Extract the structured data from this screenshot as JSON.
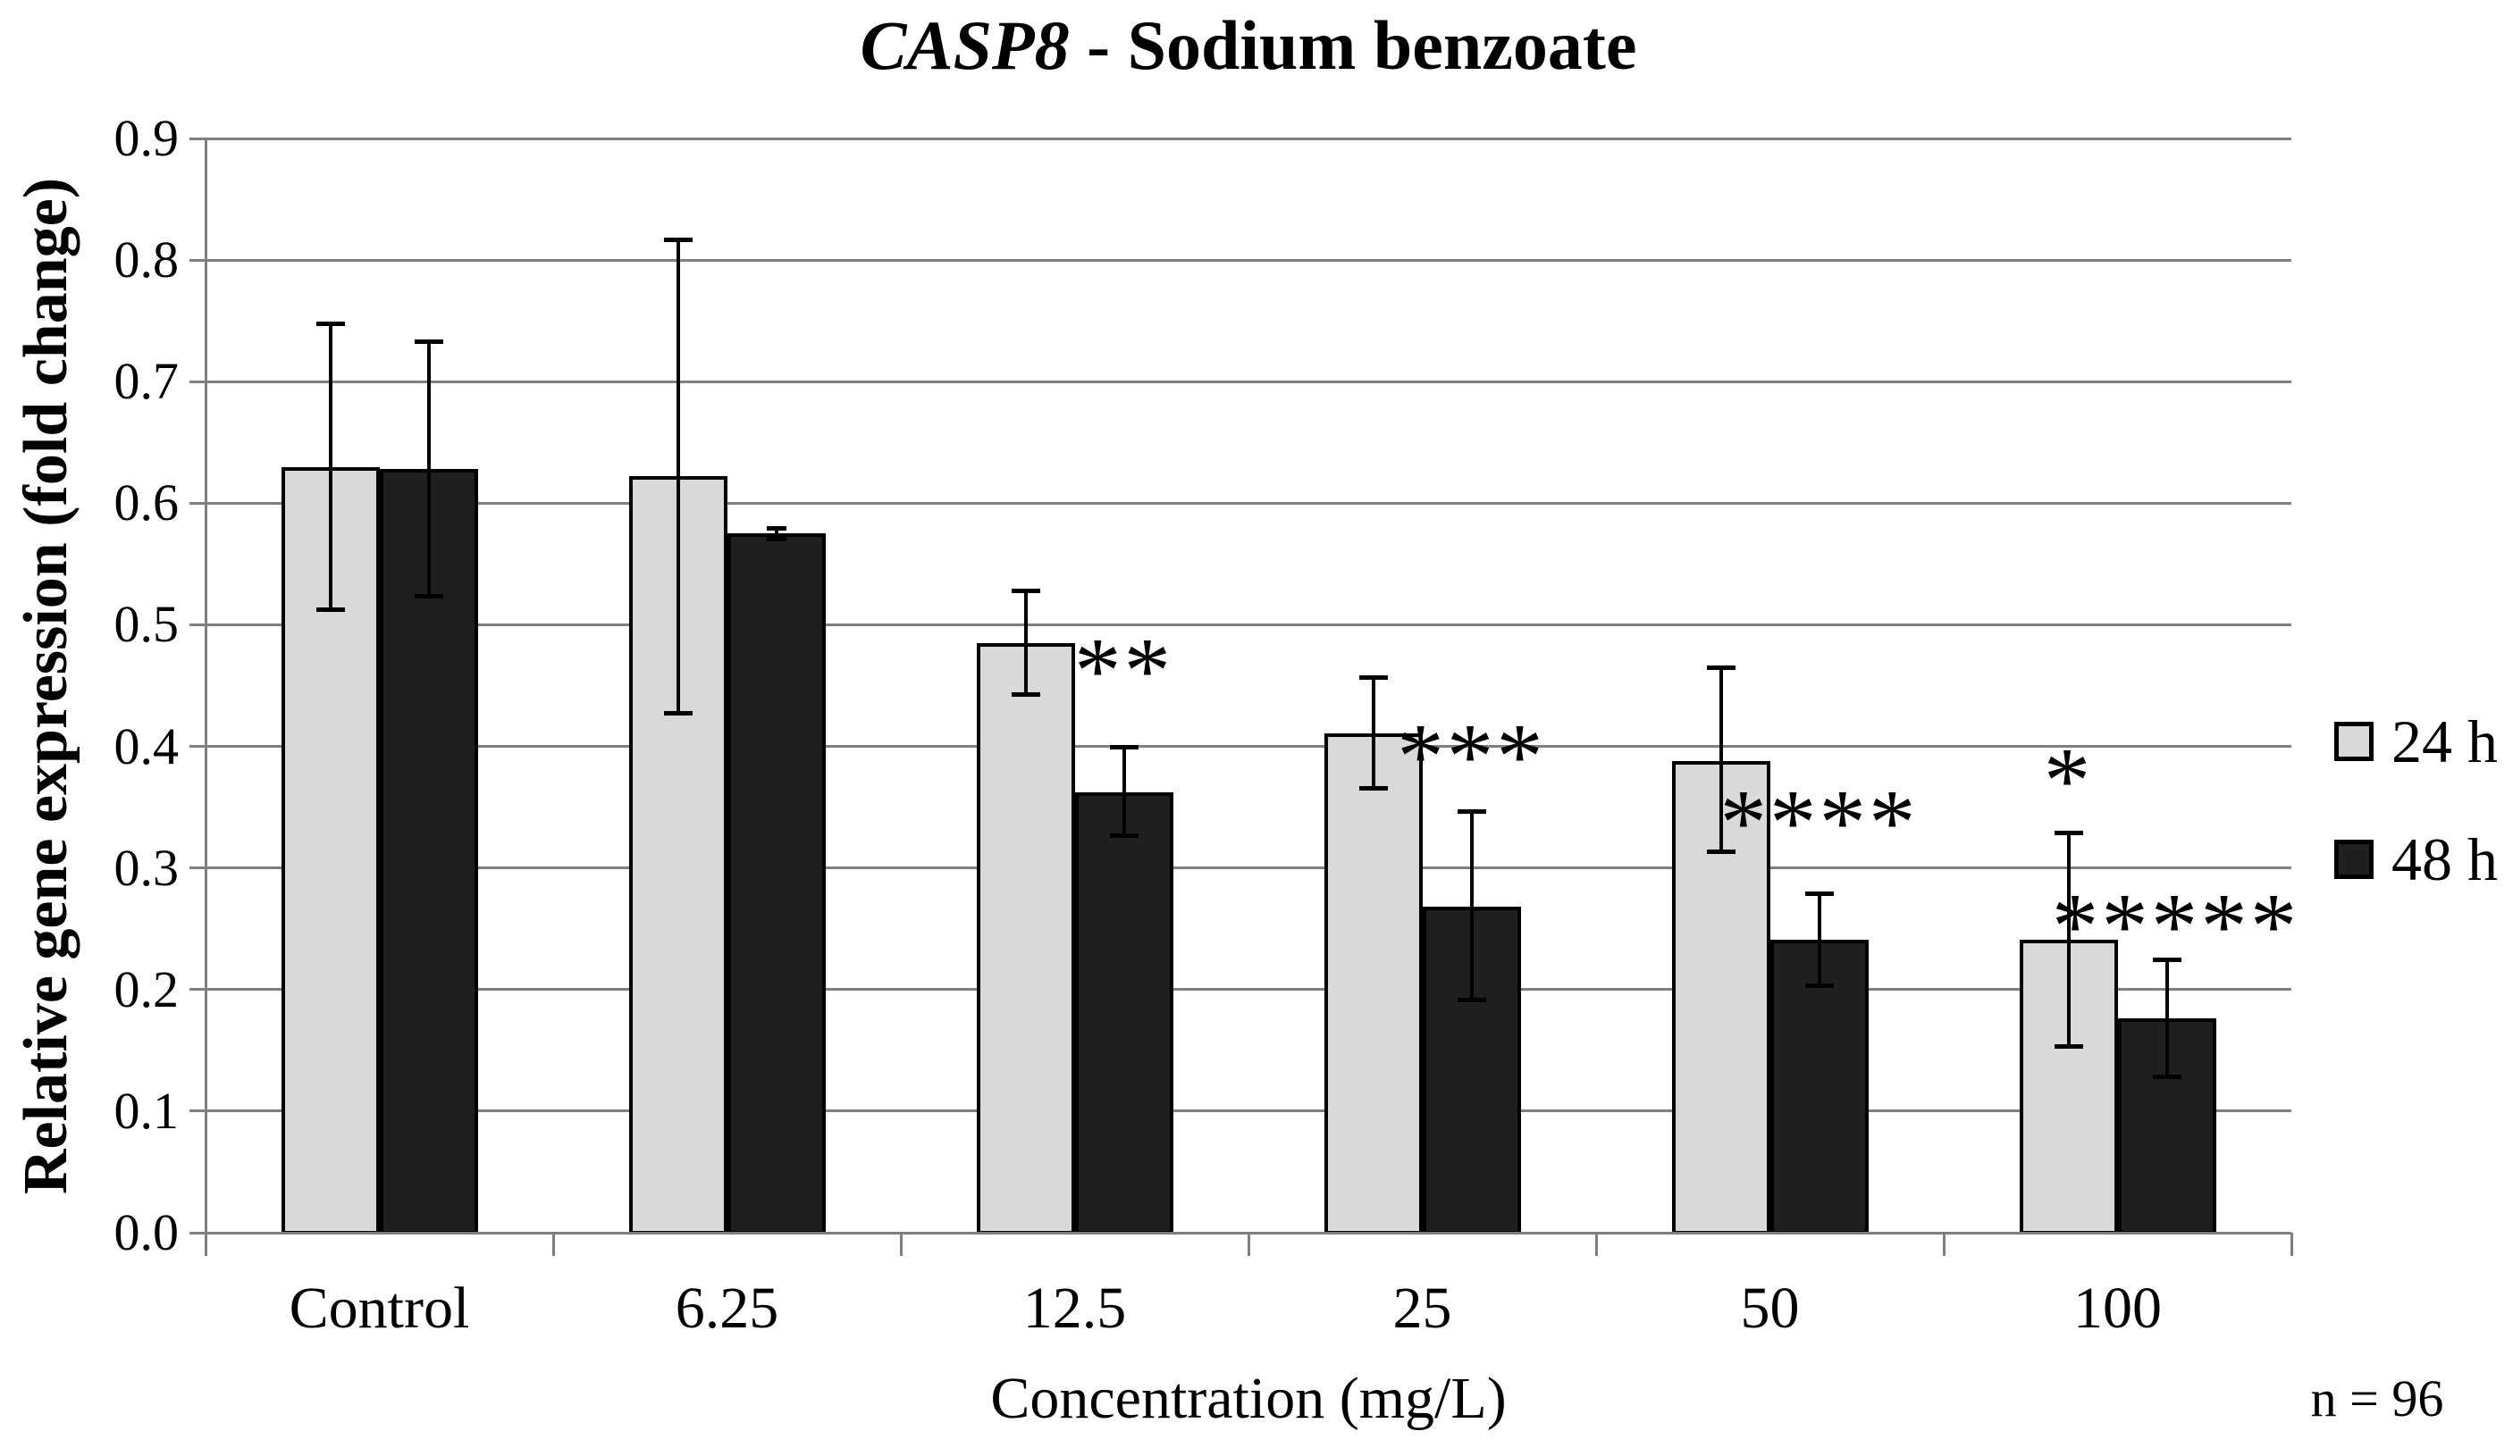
{
  "title": {
    "gene": "CASP8",
    "rest": " - Sodium benzoate"
  },
  "y_axis": {
    "label": "Relative gene expression (fold change)",
    "tick_labels": [
      "0.0",
      "0.1",
      "0.2",
      "0.3",
      "0.4",
      "0.5",
      "0.6",
      "0.7",
      "0.8",
      "0.9"
    ]
  },
  "x_axis": {
    "label": "Concentration (mg/L)",
    "categories": [
      "Control",
      "6.25",
      "12.5",
      "25",
      "50",
      "100"
    ]
  },
  "legend": [
    {
      "label": "24 h",
      "color": "#d9d9d9"
    },
    {
      "label": "48 h",
      "color": "#1f1f1f"
    }
  ],
  "note": "n = 96",
  "colors": {
    "light_bar": "#d9d9d9",
    "dark_bar": "#1f1f1f",
    "grid": "#7f7f7f",
    "error": "#000000"
  },
  "chart_data": {
    "type": "bar",
    "title": "CASP8 - Sodium benzoate",
    "xlabel": "Concentration (mg/L)",
    "ylabel": "Relative gene expression (fold change)",
    "ylim": [
      0.0,
      0.9
    ],
    "ytick_step": 0.1,
    "grid": true,
    "legend_position": "right",
    "categories": [
      "Control",
      "6.25",
      "12.5",
      "25",
      "50",
      "100"
    ],
    "series": [
      {
        "name": "24 h",
        "color": "#d9d9d9",
        "values": [
          0.63,
          0.622,
          0.485,
          0.411,
          0.388,
          0.241
        ],
        "err_up": [
          0.118,
          0.195,
          0.043,
          0.046,
          0.077,
          0.088
        ],
        "err_down": [
          0.118,
          0.195,
          0.043,
          0.046,
          0.075,
          0.088
        ]
      },
      {
        "name": "48 h",
        "color": "#1f1f1f",
        "values": [
          0.628,
          0.575,
          0.362,
          0.268,
          0.241,
          0.176
        ],
        "err_up": [
          0.105,
          0.005,
          0.038,
          0.079,
          0.038,
          0.049
        ],
        "err_down": [
          0.105,
          0.005,
          0.036,
          0.077,
          0.038,
          0.048
        ]
      }
    ],
    "annotations": [
      {
        "category": "12.5",
        "series": "48 h",
        "text": "**",
        "y": 0.47
      },
      {
        "category": "25",
        "series": "48 h",
        "text": "***",
        "y": 0.4
      },
      {
        "category": "50",
        "series": "48 h",
        "text": "****",
        "y": 0.345
      },
      {
        "category": "100",
        "series": "24 h",
        "text": "*",
        "y": 0.38
      },
      {
        "category": "100",
        "series": "48 h",
        "text": "*****",
        "y": 0.26
      }
    ],
    "footnote": "n = 96"
  }
}
